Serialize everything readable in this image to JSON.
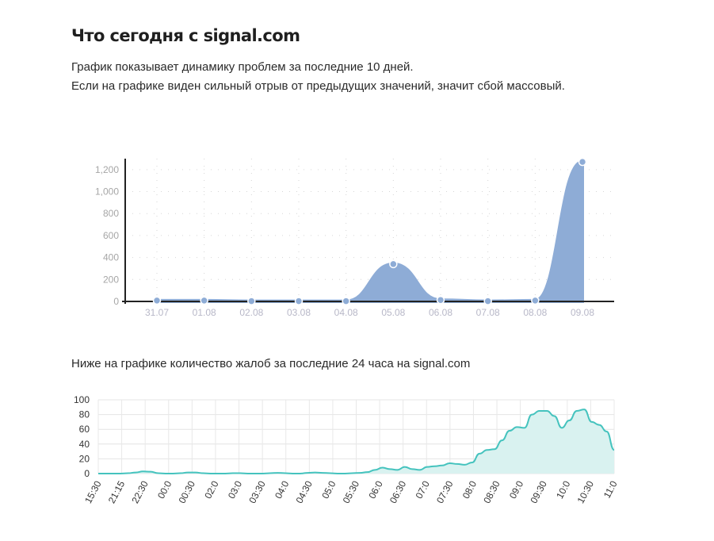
{
  "header": {
    "title": "Что сегодня с signal.com",
    "desc_line1": "График показывает динамику проблем за последние 10 дней.",
    "desc_line2": "Если на графике виден сильный отрыв от предыдущих значений, значит сбой массовый.",
    "caption_24h": "Ниже на графике количество жалоб за последние 24 часа на signal.com"
  },
  "colors": {
    "area10": "#8eacd6",
    "line24": "#45c3be",
    "fill24": "#d9f2f0"
  },
  "chart_data": [
    {
      "type": "area",
      "categories": [
        "31.07",
        "01.08",
        "02.08",
        "03.08",
        "04.08",
        "05.08",
        "06.08",
        "07.08",
        "08.08",
        "09.08"
      ],
      "values": [
        8,
        8,
        3,
        3,
        3,
        340,
        13,
        3,
        8,
        1270
      ],
      "ylim": [
        0,
        1300
      ],
      "yticks": [
        0,
        200,
        400,
        600,
        800,
        1000,
        1200
      ],
      "ytick_labels": [
        "0",
        "200",
        "400",
        "600",
        "800",
        "1,000",
        "1,200"
      ],
      "grid": true
    },
    {
      "type": "area",
      "x_labels": [
        "15:30",
        "21:15",
        "22:30",
        "00:0",
        "00:30",
        "02:0",
        "03:0",
        "03:30",
        "04:0",
        "04:30",
        "05:0",
        "05:30",
        "06:0",
        "06:30",
        "07:0",
        "07:30",
        "08:0",
        "08:30",
        "09:0",
        "09:30",
        "10:0",
        "10:30",
        "11:0"
      ],
      "values": [
        0,
        0,
        0,
        0,
        0.5,
        1.5,
        3,
        2.5,
        0.5,
        0,
        0,
        0.5,
        1.5,
        1.5,
        0.5,
        0,
        0,
        0,
        0.5,
        0.5,
        0,
        0,
        0,
        0.5,
        1,
        0.5,
        0,
        0,
        1,
        1.5,
        1,
        0.5,
        0,
        0,
        0.5,
        1,
        2,
        5,
        8,
        6,
        5,
        9,
        6,
        5,
        9,
        10,
        11,
        14,
        13,
        12,
        15,
        27,
        32,
        33,
        45,
        58,
        63,
        62,
        80,
        85,
        85,
        78,
        62,
        72,
        85,
        87,
        70,
        66,
        57,
        32
      ],
      "ylim": [
        0,
        100
      ],
      "yticks": [
        0,
        20,
        40,
        60,
        80,
        100
      ],
      "grid": true
    }
  ]
}
